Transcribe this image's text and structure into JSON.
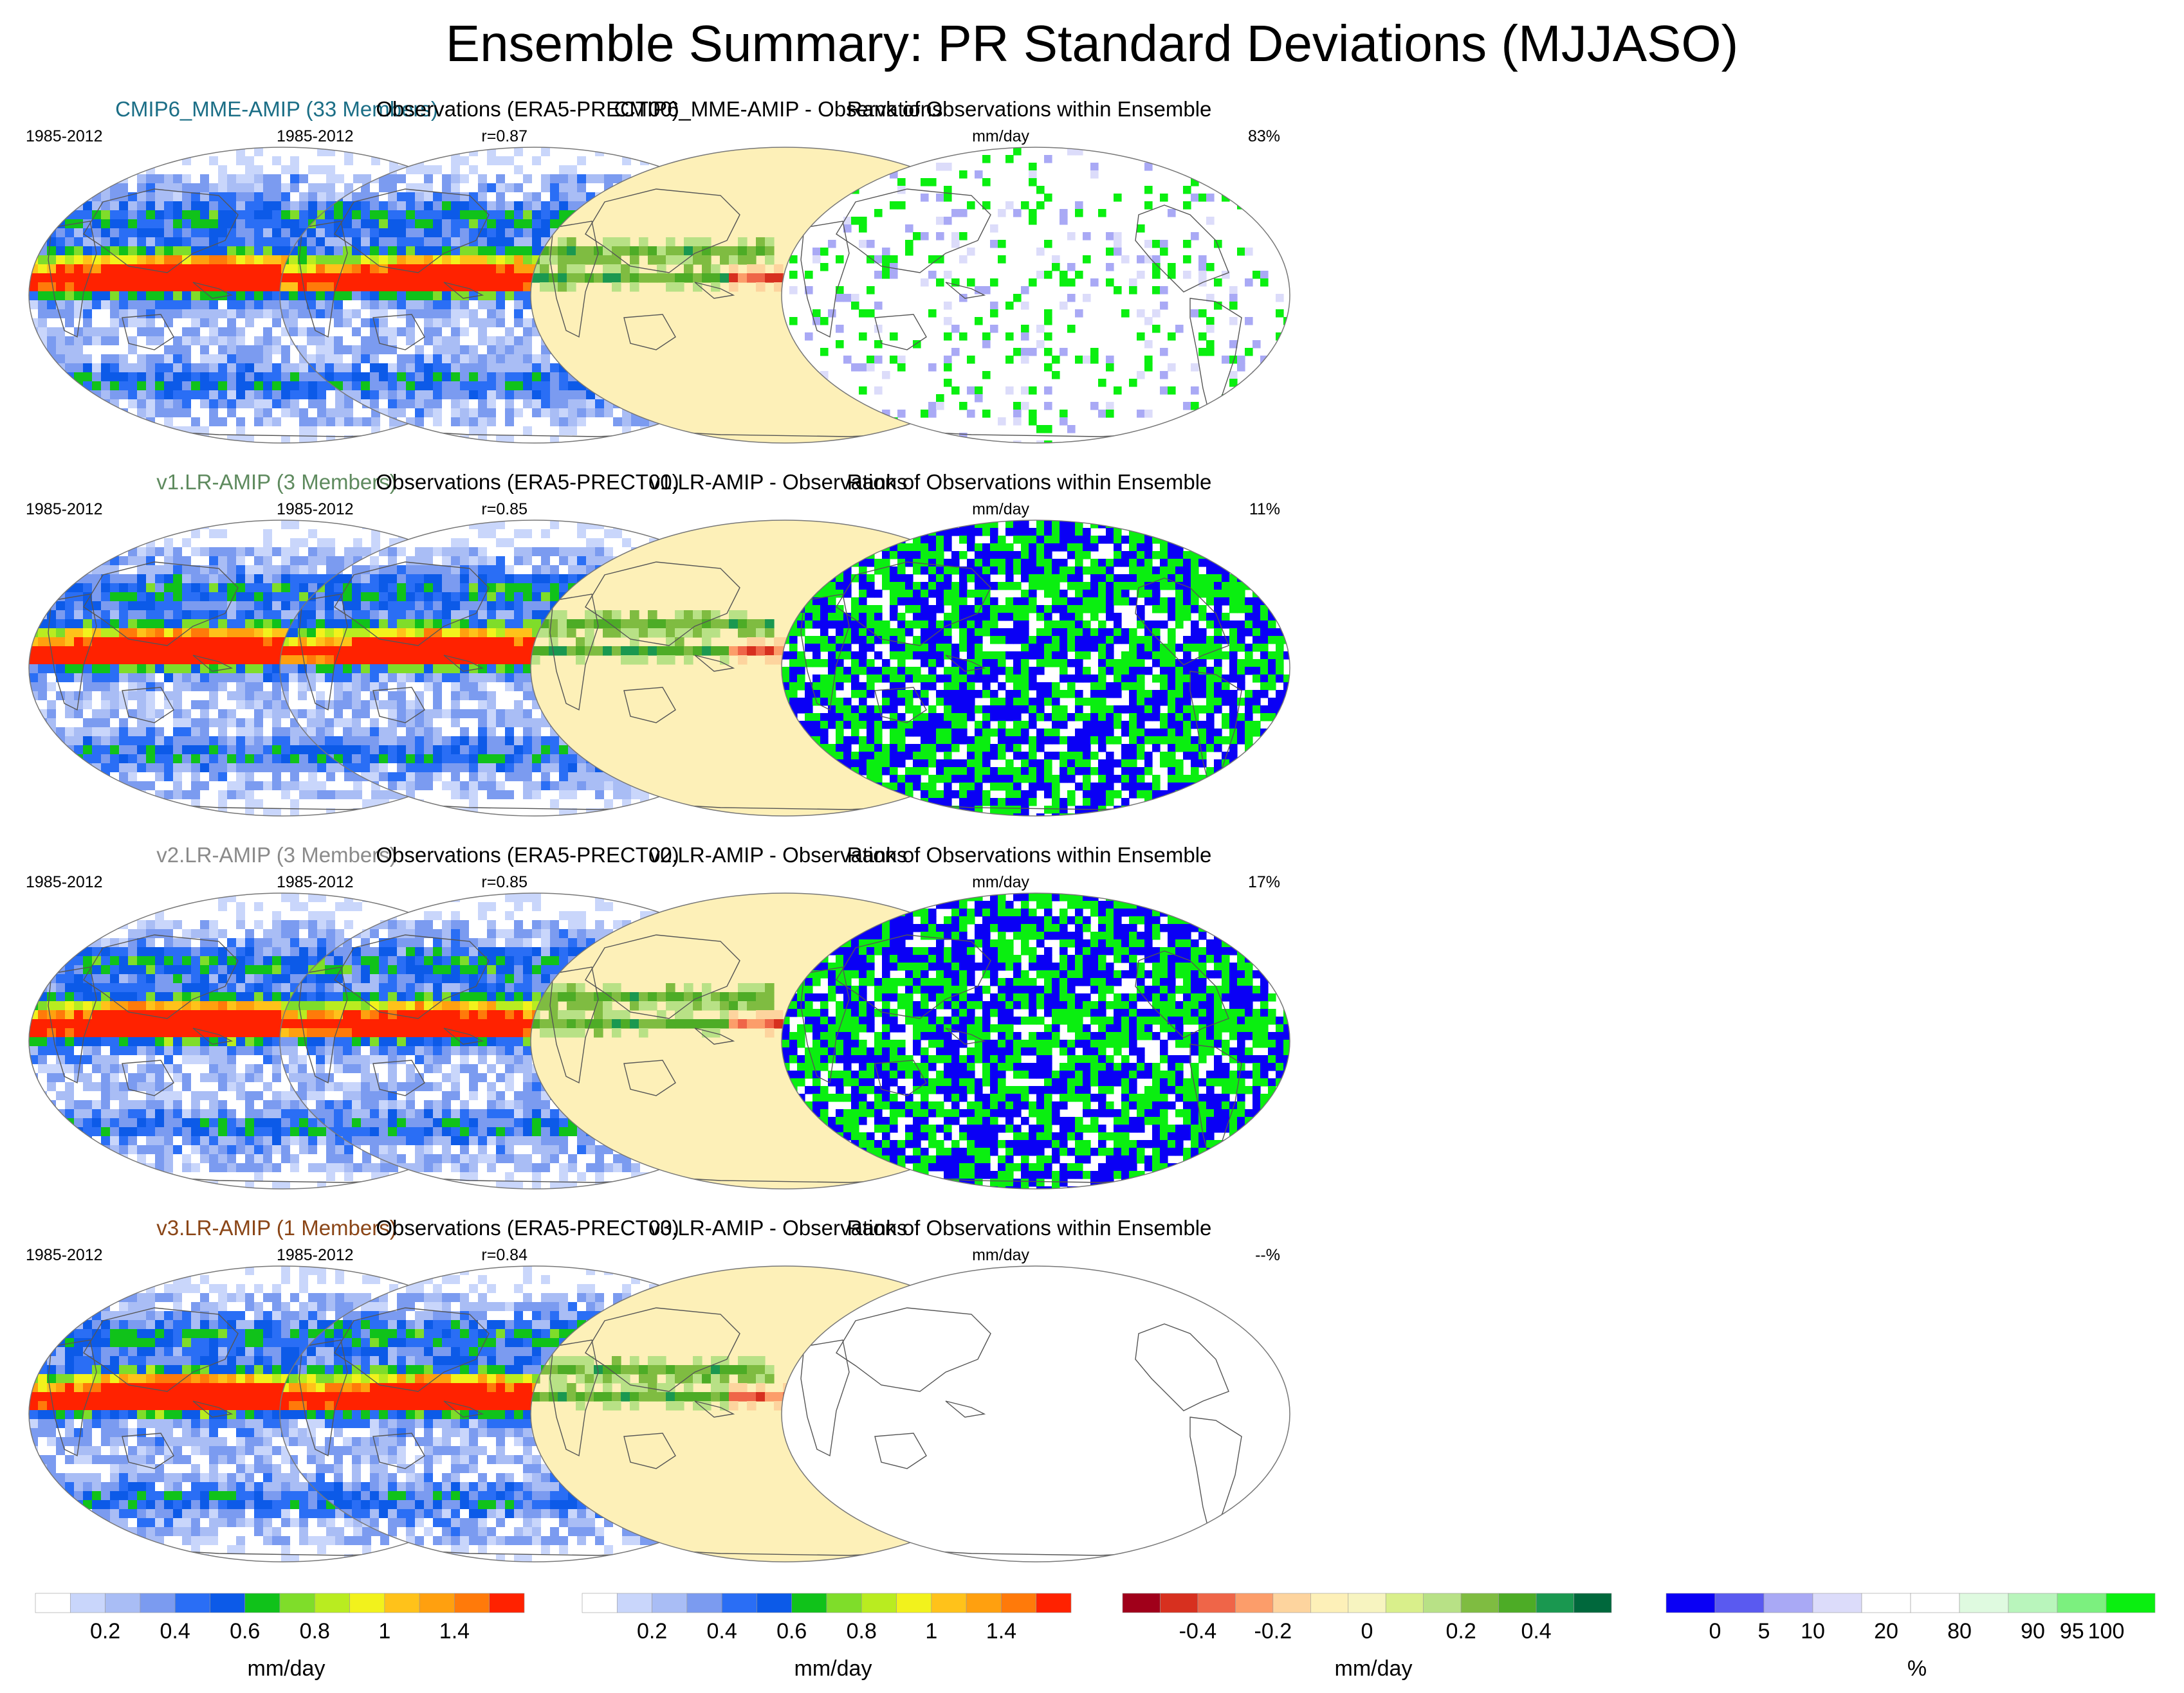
{
  "title": "Ensemble Summary: PR Standard Deviations (MJJASO)",
  "chart_data": {
    "type": "heatmap",
    "projection": "global map (elliptical)",
    "grid": "4 rows x 4 columns of map panels",
    "rows": [
      {
        "model": {
          "title": "CMIP6_MME-AMIP (33 Members)",
          "title_color": "#1b6e86",
          "period": "1985-2012",
          "correlation": "r=0.87"
        },
        "observations": {
          "title": "Observations (ERA5-PRECT00)",
          "period": "1985-2012"
        },
        "difference": {
          "title": "CMIP6_MME-AMIP - Observations",
          "units": "mm/day"
        },
        "rank": {
          "title": "Rank of Observations within Ensemble",
          "percent": "83%",
          "dominant": "sparse"
        }
      },
      {
        "model": {
          "title": "v1.LR-AMIP (3 Members)",
          "title_color": "#5e8a5e",
          "period": "1985-2012",
          "correlation": "r=0.85"
        },
        "observations": {
          "title": "Observations (ERA5-PRECT00)",
          "period": "1985-2012"
        },
        "difference": {
          "title": "v1.LR-AMIP - Observations",
          "units": "mm/day"
        },
        "rank": {
          "title": "Rank of Observations within Ensemble",
          "percent": "11%",
          "dominant": "dense"
        }
      },
      {
        "model": {
          "title": "v2.LR-AMIP (3 Members)",
          "title_color": "#8a8a8a",
          "period": "1985-2012",
          "correlation": "r=0.85"
        },
        "observations": {
          "title": "Observations (ERA5-PRECT00)",
          "period": "1985-2012"
        },
        "difference": {
          "title": "v2.LR-AMIP - Observations",
          "units": "mm/day"
        },
        "rank": {
          "title": "Rank of Observations within Ensemble",
          "percent": "17%",
          "dominant": "dense"
        }
      },
      {
        "model": {
          "title": "v3.LR-AMIP (1 Members)",
          "title_color": "#8a4516",
          "period": "1985-2012",
          "correlation": "r=0.84"
        },
        "observations": {
          "title": "Observations (ERA5-PRECT00)",
          "period": "1985-2012"
        },
        "difference": {
          "title": "v3.LR-AMIP - Observations",
          "units": "mm/day"
        },
        "rank": {
          "title": "Rank of Observations within Ensemble",
          "percent": "--%",
          "dominant": "empty"
        }
      }
    ],
    "colorbars": [
      {
        "name": "stddev-model",
        "unit": "mm/day",
        "colors": [
          "#ffffff",
          "#c9d6fb",
          "#a9bdf5",
          "#7b9bf0",
          "#2a6ef5",
          "#0c5ae8",
          "#10c21a",
          "#7fdd2a",
          "#b9ec20",
          "#f2f21c",
          "#ffc21a",
          "#ffa00f",
          "#ff7a0a",
          "#ff2200"
        ],
        "tick_labels": [
          {
            "at": 2,
            "text": "0.2"
          },
          {
            "at": 4,
            "text": "0.4"
          },
          {
            "at": 6,
            "text": "0.6"
          },
          {
            "at": 8,
            "text": "0.8"
          },
          {
            "at": 10,
            "text": "1"
          },
          {
            "at": 12,
            "text": "1.4"
          }
        ]
      },
      {
        "name": "stddev-obs",
        "unit": "mm/day",
        "colors": [
          "#ffffff",
          "#c9d6fb",
          "#a9bdf5",
          "#7b9bf0",
          "#2a6ef5",
          "#0c5ae8",
          "#10c21a",
          "#7fdd2a",
          "#b9ec20",
          "#f2f21c",
          "#ffc21a",
          "#ffa00f",
          "#ff7a0a",
          "#ff2200"
        ],
        "tick_labels": [
          {
            "at": 2,
            "text": "0.2"
          },
          {
            "at": 4,
            "text": "0.4"
          },
          {
            "at": 6,
            "text": "0.6"
          },
          {
            "at": 8,
            "text": "0.8"
          },
          {
            "at": 10,
            "text": "1"
          },
          {
            "at": 12,
            "text": "1.4"
          }
        ]
      },
      {
        "name": "difference",
        "unit": "mm/day",
        "colors": [
          "#a0001a",
          "#d7301f",
          "#ef6548",
          "#fc9d6a",
          "#fdd49e",
          "#fdf0b8",
          "#f7f4c0",
          "#d9ef8b",
          "#b8e186",
          "#7fbc41",
          "#4dac26",
          "#1a9850",
          "#00683c"
        ],
        "tick_labels": [
          {
            "at": 2,
            "text": "-0.4"
          },
          {
            "at": 4,
            "text": "-0.2"
          },
          {
            "at": 6.5,
            "text": "0"
          },
          {
            "at": 9,
            "text": "0.2"
          },
          {
            "at": 11,
            "text": "0.4"
          }
        ]
      },
      {
        "name": "rank",
        "unit": "%",
        "colors": [
          "#0a00f5",
          "#5a5af0",
          "#a9a9f5",
          "#dcdcfa",
          "#ffffff",
          "#ffffff",
          "#dffae0",
          "#b9f5bc",
          "#7cf07f",
          "#0aef10"
        ],
        "tick_labels": [
          {
            "at": 1,
            "text": "0"
          },
          {
            "at": 2,
            "text": "5"
          },
          {
            "at": 3,
            "text": "10"
          },
          {
            "at": 4.5,
            "text": "20"
          },
          {
            "at": 6,
            "text": "80"
          },
          {
            "at": 7.5,
            "text": "90"
          },
          {
            "at": 8.3,
            "text": "95"
          },
          {
            "at": 9,
            "text": "100"
          }
        ]
      }
    ]
  }
}
